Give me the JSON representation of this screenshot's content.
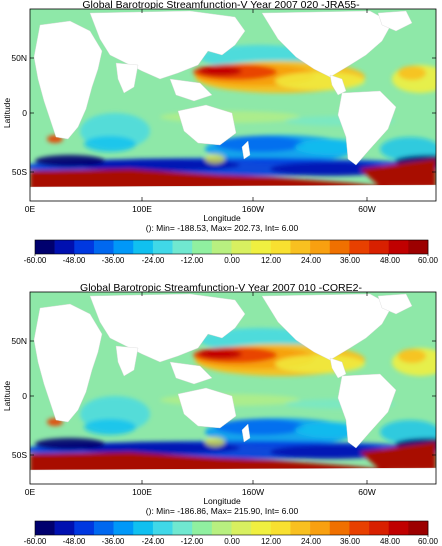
{
  "chart_data": [
    {
      "type": "heatmap",
      "title": "Global Barotropic Streamfunction-V Year 2007 020 -JRA55-",
      "xlabel": "Longitude",
      "ylabel": "Latitude",
      "x_ticks": [
        "0E",
        "100E",
        "160W",
        "60W"
      ],
      "y_ticks": [
        "50N",
        "0",
        "50S"
      ],
      "stats": "(): Min= -188.53, Max= 202.73, Int= 6.00",
      "colorbar": {
        "min": -60,
        "max": 60,
        "interval": 6,
        "tick_labels": [
          "-60.00",
          "-48.00",
          "-36.00",
          "-24.00",
          "-12.00",
          "0.00",
          "12.00",
          "24.00",
          "36.00",
          "48.00",
          "60.00"
        ]
      }
    },
    {
      "type": "heatmap",
      "title": "Global Barotropic Streamfunction-V Year 2007 010 -CORE2-",
      "xlabel": "Longitude",
      "ylabel": "Latitude",
      "x_ticks": [
        "0E",
        "100E",
        "160W",
        "60W"
      ],
      "y_ticks": [
        "50N",
        "0",
        "50S"
      ],
      "stats": "(): Min= -186.86, Max= 215.90, Int= 6.00",
      "colorbar": {
        "min": -60,
        "max": 60,
        "interval": 6,
        "tick_labels": [
          "-60.00",
          "-48.00",
          "-36.00",
          "-24.00",
          "-12.00",
          "0.00",
          "12.00",
          "24.00",
          "36.00",
          "48.00",
          "60.00"
        ]
      }
    }
  ],
  "colors": {
    "palette": [
      "#00006e",
      "#0010b0",
      "#0038e0",
      "#0068f0",
      "#0098f8",
      "#10c0f0",
      "#40d8e8",
      "#70e8d0",
      "#90f0a0",
      "#b8f080",
      "#d8f060",
      "#f0f040",
      "#f8e030",
      "#f8c020",
      "#f8a010",
      "#f07000",
      "#e84000",
      "#d82000",
      "#c00000",
      "#9c0000"
    ],
    "ocean_base": "#8ee8a8",
    "land": "#ffffff",
    "acc": "#a80a00"
  }
}
